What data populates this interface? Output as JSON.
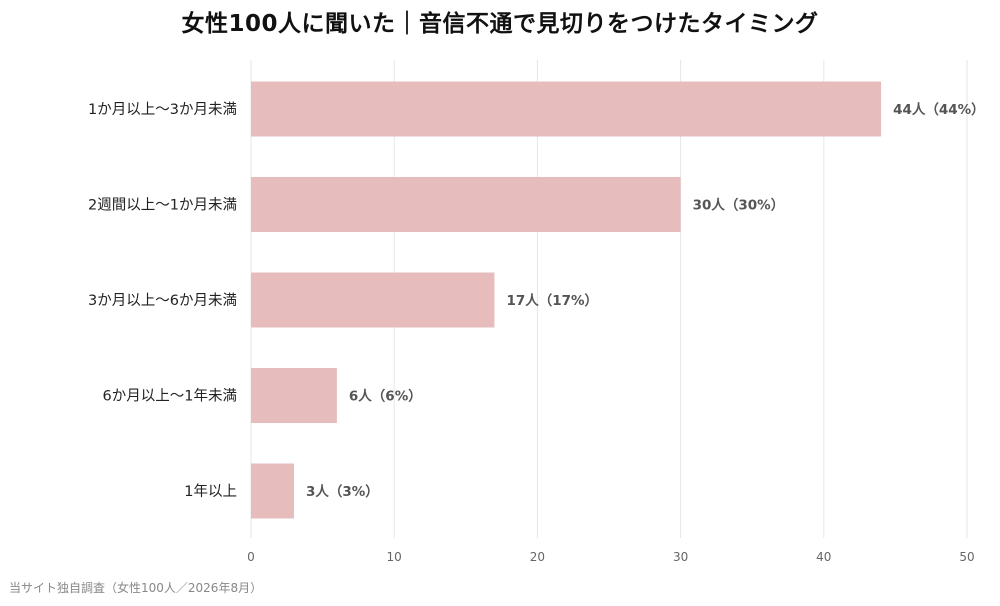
{
  "chart_data": {
    "type": "bar",
    "orientation": "horizontal",
    "title": "女性100人に聞いた｜音信不通で見切りをつけたタイミング",
    "categories": [
      "1か月以上〜3か月未満",
      "2週間以上〜1か月未満",
      "3か月以上〜6か月未満",
      "6か月以上〜1年未満",
      "1年以上"
    ],
    "values": [
      44,
      30,
      17,
      6,
      3
    ],
    "data_labels": [
      "44人（44%）",
      "30人（30%）",
      "17人（17%）",
      "6人（6%）",
      "3人（3%）"
    ],
    "xlim": [
      0,
      50
    ],
    "xticks": [
      0,
      10,
      20,
      30,
      40,
      50
    ],
    "xlabel": "",
    "ylabel": "",
    "grid": "vertical",
    "legend": "none",
    "bar_color": "#e6bcbc",
    "grid_color": "#e6e6e6"
  },
  "source": "当サイト独自調査（女性100人／2026年8月）"
}
